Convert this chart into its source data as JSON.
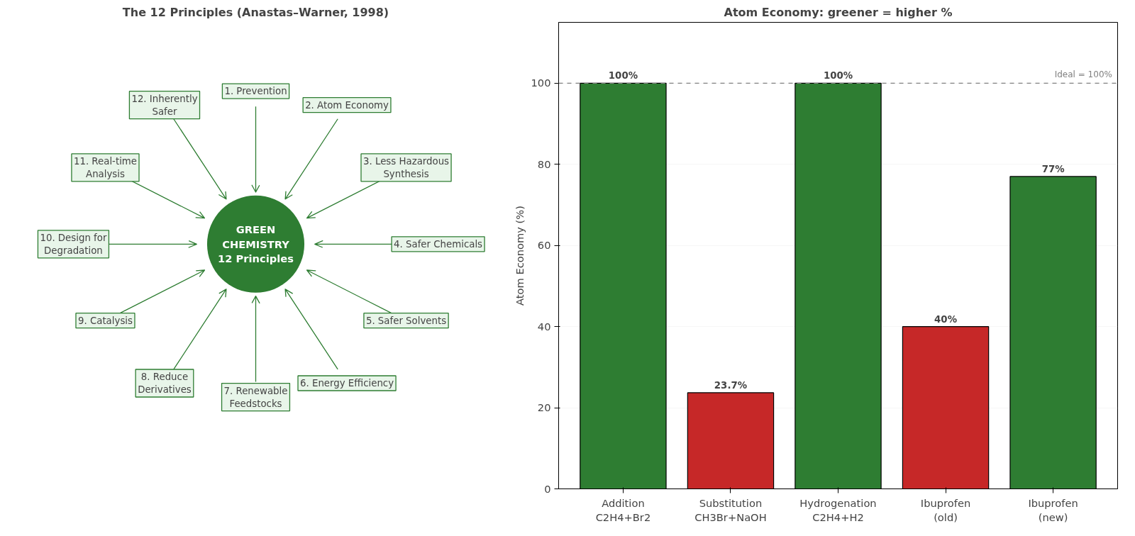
{
  "chart_data": [
    {
      "type": "other",
      "title": "The 12 Principles (Anastas–Warner, 1998)",
      "annotations": [
        "GREEN\nCHEMISTRY\n12 Principles"
      ],
      "color": "#2e7d32",
      "categories": [
        "1. Prevention",
        "2. Atom Economy",
        "3. Less Hazardous\nSynthesis",
        "4. Safer Chemicals",
        "5. Safer Solvents",
        "6. Energy Efficiency",
        "7. Renewable\nFeedstocks",
        "8. Reduce\nDerivatives",
        "9. Catalysis",
        "10. Design for\nDegradation",
        "11. Real-time\nAnalysis",
        "12. Inherently\nSafer"
      ]
    },
    {
      "type": "bar",
      "title": "Atom Economy: greener = higher %",
      "ylabel": "Atom Economy (%)",
      "categories": [
        "Addition\nC2H4+Br2",
        "Substitution\nCH3Br+NaOH",
        "Hydrogenation\nC2H4+H2",
        "Ibuprofen\n(old)",
        "Ibuprofen\n(new)"
      ],
      "values": [
        100,
        23.7,
        100,
        40,
        77
      ],
      "colors": [
        "#2e7d32",
        "#c62828",
        "#2e7d32",
        "#c62828",
        "#2e7d32"
      ],
      "value_labels": [
        "100%",
        "23.7%",
        "100%",
        "40%",
        "77%"
      ],
      "ylim": [
        0,
        115
      ],
      "yticks": [
        0,
        20,
        40,
        60,
        80,
        100
      ],
      "grid": "y",
      "ref_lines": [
        {
          "axis": "y",
          "value": 100,
          "label": "Ideal = 100%",
          "color": "#808080",
          "line_style": "dashed"
        }
      ]
    }
  ]
}
